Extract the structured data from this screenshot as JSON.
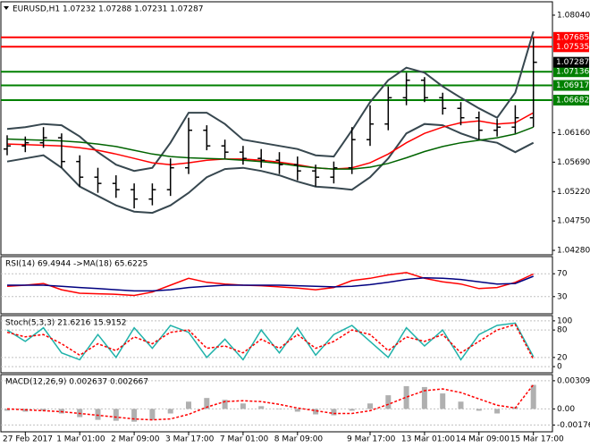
{
  "chart_data": [
    {
      "type": "candlestick",
      "title": "EURUSD,H1  1.07232 1.07288 1.07231 1.07287",
      "categories": [
        null,
        "27 Feb 2017",
        null,
        null,
        "1 Mar 01:00",
        null,
        null,
        "2 Mar 09:00",
        null,
        null,
        "3 Mar 17:00",
        null,
        null,
        "7 Mar 01:00",
        null,
        null,
        "8 Mar 09:00",
        null,
        null,
        null,
        "9 Mar 17:00",
        null,
        null,
        "13 Mar 01:00",
        null,
        null,
        "14 Mar 09:00",
        null,
        null,
        "15 Mar 17:00"
      ],
      "open": [
        1.059,
        1.0595,
        1.06,
        1.0608,
        1.057,
        1.0545,
        1.0535,
        1.0525,
        1.051,
        1.0525,
        1.056,
        1.062,
        1.0595,
        1.0585,
        1.0575,
        1.0572,
        1.0565,
        1.0555,
        1.0545,
        1.056,
        1.0605,
        1.063,
        1.0672,
        1.07,
        1.0672,
        1.0655,
        1.064,
        1.062,
        1.0625,
        1.064
      ],
      "high": [
        1.0612,
        1.061,
        1.0625,
        1.0615,
        1.058,
        1.056,
        1.0548,
        1.0535,
        1.0535,
        1.0575,
        1.064,
        1.0628,
        1.0605,
        1.0595,
        1.059,
        1.0585,
        1.0578,
        1.0565,
        1.057,
        1.0625,
        1.066,
        1.069,
        1.0712,
        1.0705,
        1.068,
        1.0665,
        1.065,
        1.0638,
        1.066,
        1.0768
      ],
      "low": [
        1.058,
        1.0585,
        1.0592,
        1.056,
        1.053,
        1.052,
        1.0512,
        1.0495,
        1.05,
        1.0515,
        1.055,
        1.0588,
        1.0575,
        1.0565,
        1.056,
        1.055,
        1.054,
        1.053,
        1.0535,
        1.055,
        1.0595,
        1.062,
        1.066,
        1.0665,
        1.0645,
        1.0628,
        1.0605,
        1.061,
        1.0615,
        1.0625
      ],
      "close": [
        1.0595,
        1.06,
        1.0608,
        1.057,
        1.0545,
        1.0535,
        1.0525,
        1.051,
        1.0525,
        1.056,
        1.062,
        1.0595,
        1.0585,
        1.0575,
        1.0572,
        1.0565,
        1.0555,
        1.0545,
        1.056,
        1.0605,
        1.063,
        1.0672,
        1.07,
        1.0672,
        1.0655,
        1.064,
        1.062,
        1.0625,
        1.064,
        1.07287
      ],
      "color": "#000000",
      "series": [
        {
          "color": "#37474f",
          "values": [
            1.0622,
            1.0625,
            1.063,
            1.0628,
            1.061,
            1.0585,
            1.0565,
            1.0555,
            1.056,
            1.06,
            1.0648,
            1.0648,
            1.063,
            1.0605,
            1.06,
            1.0595,
            1.059,
            1.058,
            1.0578,
            1.062,
            1.0665,
            1.07,
            1.072,
            1.0712,
            1.069,
            1.0672,
            1.0655,
            1.064,
            1.068,
            1.0778
          ]
        },
        {
          "color": "#37474f",
          "values": [
            1.057,
            1.0575,
            1.058,
            1.056,
            1.053,
            1.0515,
            1.05,
            1.049,
            1.0488,
            1.05,
            1.052,
            1.0545,
            1.0558,
            1.056,
            1.0555,
            1.0548,
            1.0538,
            1.053,
            1.0528,
            1.0525,
            1.0545,
            1.0575,
            1.0615,
            1.063,
            1.0628,
            1.0615,
            1.0605,
            1.06,
            1.0585,
            1.06
          ]
        },
        {
          "color": "#ff0000",
          "values": [
            1.0598,
            1.0597,
            1.0596,
            1.0595,
            1.0592,
            1.0588,
            1.0582,
            1.0575,
            1.0568,
            1.0565,
            1.0568,
            1.0572,
            1.0574,
            1.0574,
            1.0572,
            1.0569,
            1.0565,
            1.056,
            1.0558,
            1.056,
            1.0568,
            1.0582,
            1.06,
            1.0615,
            1.0625,
            1.0632,
            1.0635,
            1.063,
            1.0632,
            1.0648
          ]
        },
        {
          "color": "#006400",
          "values": [
            1.0606,
            1.0605,
            1.0604,
            1.0603,
            1.0601,
            1.0598,
            1.0594,
            1.0588,
            1.0582,
            1.0578,
            1.0576,
            1.0575,
            1.0574,
            1.0572,
            1.057,
            1.0567,
            1.0563,
            1.056,
            1.0558,
            1.0558,
            1.0561,
            1.0567,
            1.0576,
            1.0586,
            1.0594,
            1.06,
            1.0604,
            1.0608,
            1.0614,
            1.0625
          ]
        }
      ],
      "levels": [
        {
          "value": 1.07685,
          "label": "1.07685",
          "color": "#ff0000"
        },
        {
          "value": 1.07535,
          "label": "1.07535",
          "color": "#ff0000"
        },
        {
          "value": 1.07136,
          "label": "1.07136",
          "color": "#008000"
        },
        {
          "value": 1.06917,
          "label": "1.06917",
          "color": "#008000"
        },
        {
          "value": 1.06682,
          "label": "1.06682",
          "color": "#008000"
        }
      ],
      "last": {
        "value": 1.07287,
        "label": "1.07287"
      },
      "ylim": [
        1.04209,
        1.08254
      ],
      "yticks": [
        {
          "value": 1.0804,
          "label": "1.08040"
        },
        {
          "value": 1.0616,
          "label": "1.06160"
        },
        {
          "value": 1.0569,
          "label": "1.05690"
        },
        {
          "value": 1.0522,
          "label": "1.05220"
        },
        {
          "value": 1.0475,
          "label": "1.04750"
        },
        {
          "value": 1.0428,
          "label": "1.04280"
        }
      ]
    },
    {
      "type": "line",
      "title": "RSI(14) 69.4944  ->MA(18) 65.6225",
      "series": [
        {
          "color": "#ff0000",
          "values": [
            48,
            50,
            53,
            42,
            36,
            35,
            34,
            32,
            38,
            50,
            62,
            55,
            52,
            50,
            49,
            47,
            45,
            42,
            46,
            58,
            62,
            68,
            72,
            62,
            56,
            52,
            44,
            46,
            55,
            69.4944
          ]
        },
        {
          "color": "#000080",
          "values": [
            50,
            50,
            50,
            48,
            46,
            44,
            42,
            40,
            40,
            42,
            46,
            48,
            50,
            50,
            50,
            50,
            49,
            48,
            47,
            48,
            51,
            55,
            60,
            63,
            62,
            60,
            56,
            52,
            53,
            65.6225
          ]
        }
      ],
      "ylim": [
        0,
        100
      ],
      "yticks": [
        70,
        30
      ]
    },
    {
      "type": "line",
      "title": "Stoch(5,3,3) 21.6216 15.9152",
      "series": [
        {
          "color": "#20b2aa",
          "values": [
            80,
            55,
            85,
            30,
            15,
            70,
            20,
            85,
            40,
            90,
            75,
            20,
            60,
            15,
            80,
            30,
            85,
            25,
            70,
            90,
            55,
            20,
            85,
            45,
            80,
            15,
            70,
            90,
            95,
            21.6216
          ]
        },
        {
          "color": "#ff0000",
          "dash": true,
          "values": [
            75,
            65,
            70,
            50,
            25,
            50,
            35,
            65,
            50,
            75,
            80,
            40,
            45,
            30,
            60,
            40,
            70,
            40,
            55,
            80,
            70,
            35,
            65,
            55,
            70,
            30,
            55,
            80,
            92,
            15.9152
          ]
        }
      ],
      "ylim": [
        -13.5,
        111.5
      ],
      "yticks": [
        100,
        80,
        20,
        0
      ]
    },
    {
      "type": "bar",
      "title": "MACD(12,26,9) 0.002637 0.002667",
      "values": [
        -0.0002,
        -0.0003,
        -0.0002,
        -0.0005,
        -0.0009,
        -0.0012,
        -0.0013,
        -0.0014,
        -0.0012,
        -0.0005,
        0.0008,
        0.0012,
        0.001,
        0.0006,
        0.0003,
        0.0,
        -0.0003,
        -0.0006,
        -0.0007,
        -0.0002,
        0.0006,
        0.0015,
        0.0025,
        0.0024,
        0.0017,
        0.0008,
        -0.0002,
        -0.0005,
        0.0002,
        0.002637
      ],
      "color": "#b0b0b0",
      "series": [
        {
          "color": "#ff0000",
          "dash": true,
          "values": [
            0.0,
            -0.0001,
            -0.0002,
            -0.0003,
            -0.0005,
            -0.0007,
            -0.0009,
            -0.0011,
            -0.0012,
            -0.0011,
            -0.0006,
            0.0002,
            0.0008,
            0.0009,
            0.0008,
            0.0005,
            0.0001,
            -0.0002,
            -0.0005,
            -0.0005,
            -0.0002,
            0.0005,
            0.0013,
            0.002,
            0.0022,
            0.0018,
            0.0011,
            0.0004,
            0.0001,
            0.002667
          ]
        }
      ],
      "ylim": [
        -0.002512,
        0.003768
      ],
      "yticks": [
        0.003092,
        {
          "value": 0,
          "label": "0.00"
        },
        -0.001767
      ]
    }
  ]
}
